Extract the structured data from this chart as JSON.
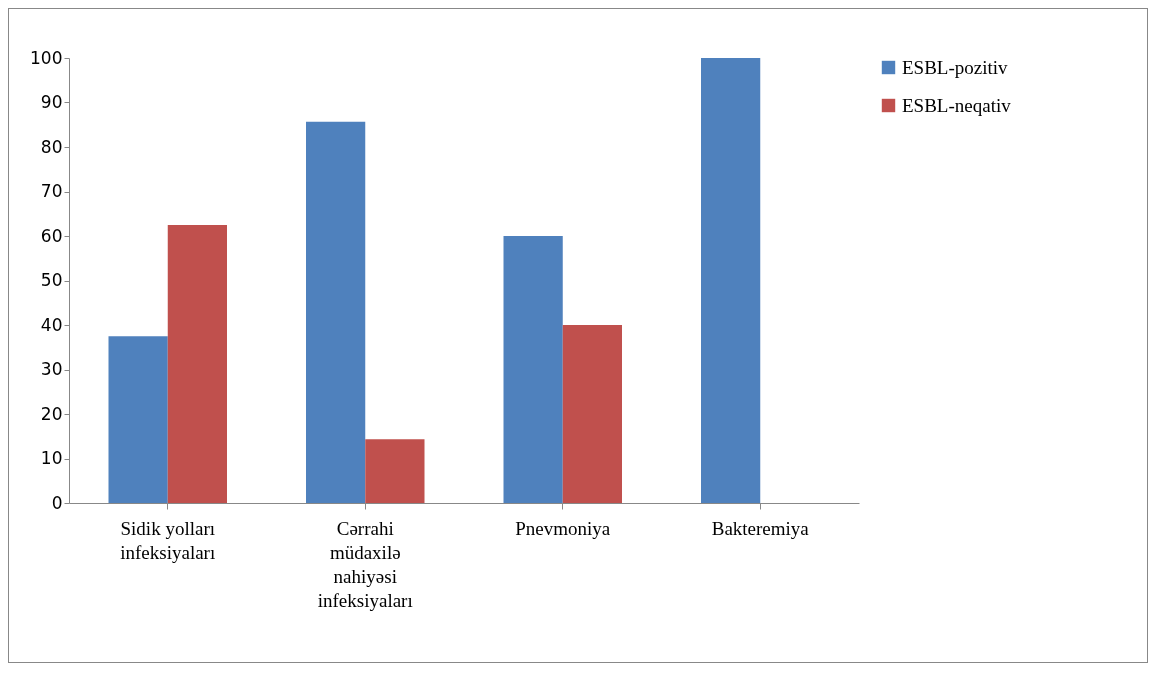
{
  "chart_data": {
    "type": "bar",
    "categories": [
      "Sidik yolları infeksiyaları",
      "Cərrahi müdaxilə nahiyəsi infeksiyaları",
      "Pnevmoniya",
      "Bakteremiya"
    ],
    "series": [
      {
        "name": "ESBL-pozitiv",
        "color": "#4f81bd",
        "values": [
          37.5,
          85.7,
          60,
          100
        ]
      },
      {
        "name": "ESBL-neqativ",
        "color": "#c0504d",
        "values": [
          62.5,
          14.3,
          40,
          0
        ]
      }
    ],
    "ylim": [
      0,
      100
    ],
    "yticks": [
      0,
      10,
      20,
      30,
      40,
      50,
      60,
      70,
      80,
      90,
      100
    ],
    "grid": false,
    "legend": "right"
  }
}
